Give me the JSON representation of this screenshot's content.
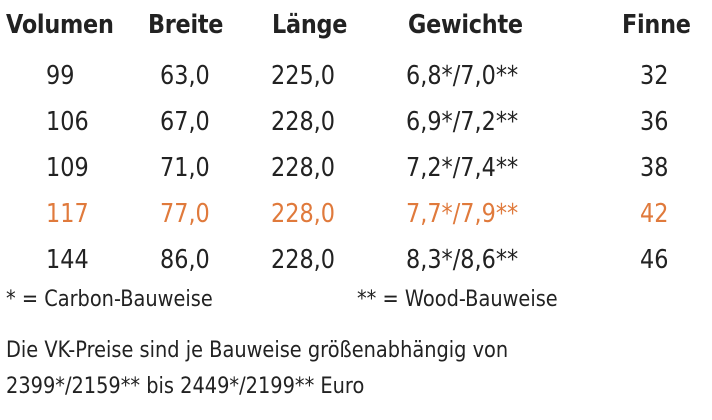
{
  "table": {
    "headers": [
      "Volumen",
      "Breite",
      "Länge",
      "Gewichte",
      "Finne"
    ],
    "rows": [
      [
        "99",
        "63,0",
        "225,0",
        "6,8*/7,0**",
        "32"
      ],
      [
        "106",
        "67,0",
        "228,0",
        "6,9*/7,2**",
        "36"
      ],
      [
        "109",
        "71,0",
        "228,0",
        "7,2*/7,4**",
        "38"
      ],
      [
        "117",
        "77,0",
        "228,0",
        "7,7*/7,9**",
        "42"
      ],
      [
        "144",
        "86,0",
        "228,0",
        "8,3*/8,6**",
        "46"
      ]
    ],
    "highlight_row_index": 3,
    "highlight_color": "#e07a3c",
    "text_color": "#222222"
  },
  "legend": {
    "carbon": "* = Carbon-Bauweise",
    "wood": "** = Wood-Bauweise"
  },
  "note": {
    "line1": "Die VK-Preise sind je Bauweise größenabhängig von",
    "line2": "2399*/2159** bis 2449*/2199** Euro"
  }
}
